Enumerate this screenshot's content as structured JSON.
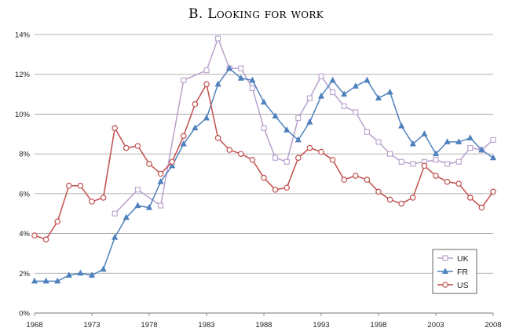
{
  "chart_data": {
    "type": "line",
    "title": "B. Looking for work",
    "xlabel": "",
    "ylabel": "",
    "xlim": [
      1968,
      2008
    ],
    "ylim": [
      0,
      14
    ],
    "grid": true,
    "legend_position": "bottom-right",
    "x_ticks": [
      "1968",
      "1973",
      "1978",
      "1983",
      "1988",
      "1993",
      "1998",
      "2003",
      "2008"
    ],
    "y_ticks": [
      "0%",
      "2%",
      "4%",
      "6%",
      "8%",
      "10%",
      "12%",
      "14%"
    ],
    "series": [
      {
        "name": "UK",
        "color": "#b8a0cc",
        "marker": "square",
        "points": [
          [
            1975,
            5.0
          ],
          [
            1977,
            6.2
          ],
          [
            1979,
            5.4
          ],
          [
            1981,
            11.7
          ],
          [
            1983,
            12.2
          ],
          [
            1984,
            13.8
          ],
          [
            1985,
            12.3
          ],
          [
            1986,
            12.3
          ],
          [
            1987,
            11.3
          ],
          [
            1988,
            9.3
          ],
          [
            1989,
            7.8
          ],
          [
            1990,
            7.6
          ],
          [
            1991,
            9.8
          ],
          [
            1992,
            10.8
          ],
          [
            1993,
            11.9
          ],
          [
            1994,
            11.1
          ],
          [
            1995,
            10.4
          ],
          [
            1996,
            10.1
          ],
          [
            1997,
            9.1
          ],
          [
            1998,
            8.6
          ],
          [
            1999,
            8.0
          ],
          [
            2000,
            7.6
          ],
          [
            2001,
            7.5
          ],
          [
            2002,
            7.6
          ],
          [
            2003,
            7.7
          ],
          [
            2004,
            7.5
          ],
          [
            2005,
            7.6
          ],
          [
            2006,
            8.3
          ],
          [
            2007,
            8.2
          ],
          [
            2008,
            8.7
          ]
        ]
      },
      {
        "name": "FR",
        "color": "#4f81bd",
        "marker": "triangle",
        "points": [
          [
            1968,
            1.6
          ],
          [
            1969,
            1.6
          ],
          [
            1970,
            1.6
          ],
          [
            1971,
            1.9
          ],
          [
            1972,
            2.0
          ],
          [
            1973,
            1.9
          ],
          [
            1974,
            2.2
          ],
          [
            1975,
            3.8
          ],
          [
            1976,
            4.8
          ],
          [
            1977,
            5.4
          ],
          [
            1978,
            5.3
          ],
          [
            1979,
            6.6
          ],
          [
            1980,
            7.4
          ],
          [
            1981,
            8.5
          ],
          [
            1982,
            9.3
          ],
          [
            1983,
            9.8
          ],
          [
            1984,
            11.5
          ],
          [
            1985,
            12.3
          ],
          [
            1986,
            11.8
          ],
          [
            1987,
            11.7
          ],
          [
            1988,
            10.6
          ],
          [
            1989,
            9.9
          ],
          [
            1990,
            9.2
          ],
          [
            1991,
            8.7
          ],
          [
            1992,
            9.6
          ],
          [
            1993,
            10.9
          ],
          [
            1994,
            11.7
          ],
          [
            1995,
            11.0
          ],
          [
            1996,
            11.4
          ],
          [
            1997,
            11.7
          ],
          [
            1998,
            10.8
          ],
          [
            1999,
            11.1
          ],
          [
            2000,
            9.4
          ],
          [
            2001,
            8.5
          ],
          [
            2002,
            9.0
          ],
          [
            2003,
            8.0
          ],
          [
            2004,
            8.6
          ],
          [
            2005,
            8.6
          ],
          [
            2006,
            8.8
          ],
          [
            2007,
            8.2
          ],
          [
            2008,
            7.8
          ]
        ]
      },
      {
        "name": "US",
        "color": "#c0504d",
        "marker": "circle",
        "points": [
          [
            1968,
            3.9
          ],
          [
            1969,
            3.7
          ],
          [
            1970,
            4.6
          ],
          [
            1971,
            6.4
          ],
          [
            1972,
            6.4
          ],
          [
            1973,
            5.6
          ],
          [
            1974,
            5.8
          ],
          [
            1975,
            9.3
          ],
          [
            1976,
            8.3
          ],
          [
            1977,
            8.4
          ],
          [
            1978,
            7.5
          ],
          [
            1979,
            7.0
          ],
          [
            1980,
            7.6
          ],
          [
            1981,
            8.9
          ],
          [
            1982,
            10.5
          ],
          [
            1983,
            11.5
          ],
          [
            1984,
            8.8
          ],
          [
            1985,
            8.2
          ],
          [
            1986,
            8.0
          ],
          [
            1987,
            7.7
          ],
          [
            1988,
            6.8
          ],
          [
            1989,
            6.2
          ],
          [
            1990,
            6.3
          ],
          [
            1991,
            7.8
          ],
          [
            1992,
            8.3
          ],
          [
            1993,
            8.1
          ],
          [
            1994,
            7.7
          ],
          [
            1995,
            6.7
          ],
          [
            1996,
            6.9
          ],
          [
            1997,
            6.7
          ],
          [
            1998,
            6.1
          ],
          [
            1999,
            5.7
          ],
          [
            2000,
            5.5
          ],
          [
            2001,
            5.8
          ],
          [
            2002,
            7.4
          ],
          [
            2003,
            6.9
          ],
          [
            2004,
            6.6
          ],
          [
            2005,
            6.5
          ],
          [
            2006,
            5.8
          ],
          [
            2007,
            5.3
          ],
          [
            2008,
            6.1
          ]
        ]
      }
    ]
  }
}
